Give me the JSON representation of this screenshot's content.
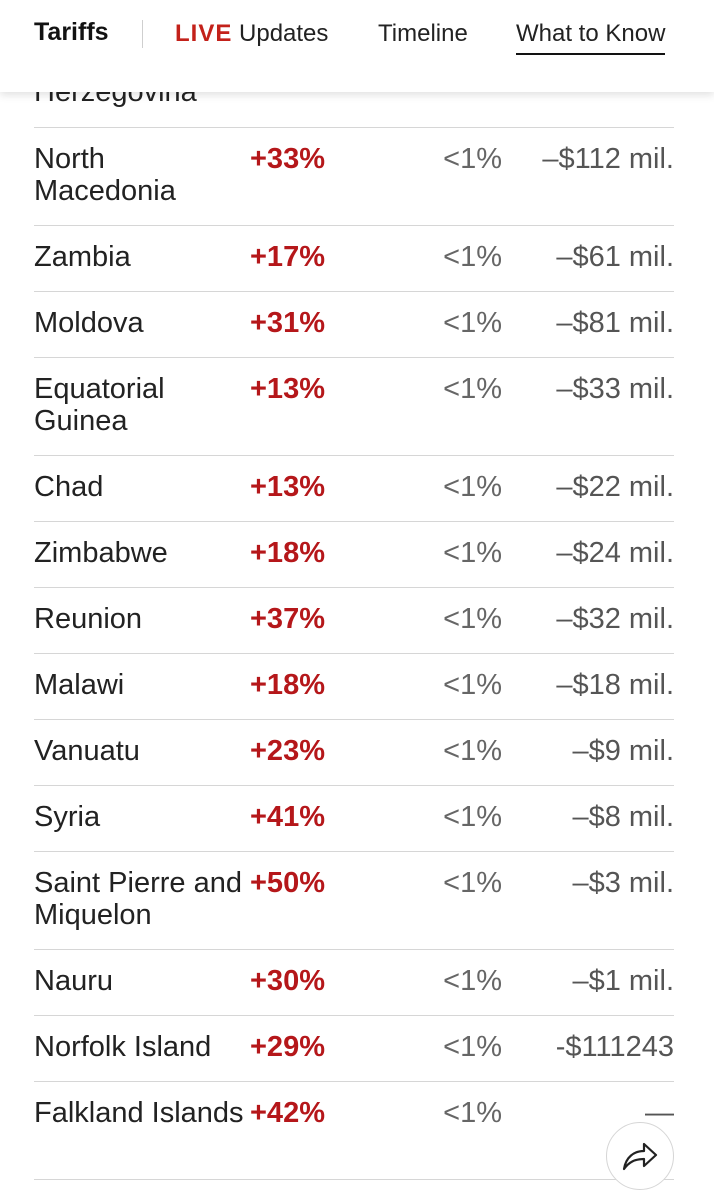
{
  "nav": {
    "brand": "Tariffs",
    "live_word": "LIVE",
    "live_rest": "Updates",
    "timeline": "Timeline",
    "what_to_know": "What to Know"
  },
  "partial_row": {
    "country": "Herzegovina"
  },
  "rows": [
    {
      "country": "North Macedonia",
      "tariff": "+33%",
      "share": "<1%",
      "value": "–$112 mil."
    },
    {
      "country": "Zambia",
      "tariff": "+17%",
      "share": "<1%",
      "value": "–$61 mil."
    },
    {
      "country": "Moldova",
      "tariff": "+31%",
      "share": "<1%",
      "value": "–$81 mil."
    },
    {
      "country": "Equatorial Guinea",
      "tariff": "+13%",
      "share": "<1%",
      "value": "–$33 mil."
    },
    {
      "country": "Chad",
      "tariff": "+13%",
      "share": "<1%",
      "value": "–$22 mil."
    },
    {
      "country": "Zimbabwe",
      "tariff": "+18%",
      "share": "<1%",
      "value": "–$24 mil."
    },
    {
      "country": "Reunion",
      "tariff": "+37%",
      "share": "<1%",
      "value": "–$32 mil."
    },
    {
      "country": "Malawi",
      "tariff": "+18%",
      "share": "<1%",
      "value": "–$18 mil."
    },
    {
      "country": "Vanuatu",
      "tariff": "+23%",
      "share": "<1%",
      "value": "–$9 mil."
    },
    {
      "country": "Syria",
      "tariff": "+41%",
      "share": "<1%",
      "value": "–$8 mil."
    },
    {
      "country": "Saint Pierre and Miquelon",
      "tariff": "+50%",
      "share": "<1%",
      "value": "–$3 mil."
    },
    {
      "country": "Nauru",
      "tariff": "+30%",
      "share": "<1%",
      "value": "–$1 mil."
    },
    {
      "country": "Norfolk Island",
      "tariff": "+29%",
      "share": "<1%",
      "value": "-$111243"
    },
    {
      "country": "Falkland Islands",
      "tariff": "+42%",
      "share": "<1%",
      "value": "—"
    }
  ],
  "icons": {
    "share": "share-arrow-icon"
  },
  "colors": {
    "live": "#c3211a",
    "tariff": "#b5171a"
  }
}
